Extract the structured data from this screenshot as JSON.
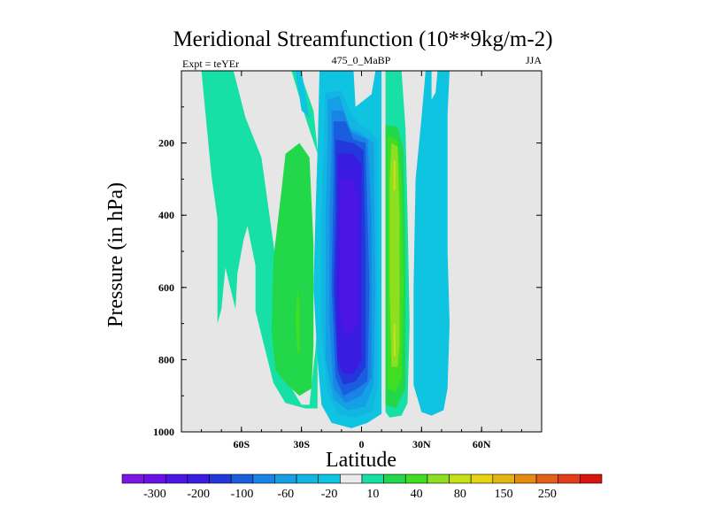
{
  "chart_data": {
    "type": "contour",
    "title": "Meridional Streamfunction (10**9kg/m-2)",
    "subtitle_left": "Expt = teYEr",
    "subtitle_center": "475_0_MaBP",
    "subtitle_right": "JJA",
    "xlabel": "Latitude",
    "ylabel": "Pressure (in hPa)",
    "xlim": [
      -90,
      90
    ],
    "ylim": [
      0,
      1000
    ],
    "y_reversed": true,
    "x_ticks": [
      {
        "value": -60,
        "label": "60S"
      },
      {
        "value": -30,
        "label": "30S"
      },
      {
        "value": 0,
        "label": "0"
      },
      {
        "value": 30,
        "label": "30N"
      },
      {
        "value": 60,
        "label": "60N"
      }
    ],
    "y_ticks": [
      {
        "value": 200,
        "label": "200"
      },
      {
        "value": 400,
        "label": "400"
      },
      {
        "value": 600,
        "label": "600"
      },
      {
        "value": 800,
        "label": "800"
      },
      {
        "value": 1000,
        "label": "1000"
      }
    ],
    "background_color": "#e6e6e6",
    "colorbar": {
      "colors": [
        "#7a16e0",
        "#6a10e8",
        "#4d14e6",
        "#3a1ce0",
        "#2238dc",
        "#1a5ee0",
        "#1a84e6",
        "#15a0e6",
        "#12b6e2",
        "#0ec4e0",
        "#ebebeb",
        "#16e0a6",
        "#22d84a",
        "#40de22",
        "#8ede22",
        "#c8e018",
        "#e4d414",
        "#e4b412",
        "#e68a10",
        "#e4601a",
        "#e23c18",
        "#d8160e"
      ],
      "labels": [
        "-300",
        "-200",
        "-100",
        "-60",
        "-20",
        "10",
        "40",
        "80",
        "150",
        "250"
      ],
      "label_boundary_index": [
        1,
        3,
        5,
        7,
        9,
        11,
        13,
        15,
        17,
        19
      ]
    },
    "regions": [
      {
        "name": "southern-outer-cell",
        "color": "#16e0a6",
        "polygon": [
          [
            -80,
            0
          ],
          [
            -64,
            0
          ],
          [
            -58,
            130
          ],
          [
            -50,
            240
          ],
          [
            -40,
            640
          ],
          [
            -36,
            870
          ],
          [
            -30,
            925
          ],
          [
            -26,
            925
          ],
          [
            -23,
            770
          ],
          [
            -21,
            610
          ],
          [
            -23,
            470
          ],
          [
            -22,
            230
          ],
          [
            -28,
            130
          ],
          [
            -35,
            0
          ],
          [
            -31,
            0
          ],
          [
            -24,
            110
          ],
          [
            -22,
            220
          ],
          [
            -23,
            400
          ],
          [
            -22,
            600
          ],
          [
            -22,
            800
          ],
          [
            -22,
            935
          ],
          [
            -28,
            935
          ],
          [
            -38,
            920
          ],
          [
            -44,
            865
          ],
          [
            -53,
            665
          ],
          [
            -53,
            540
          ],
          [
            -57,
            430
          ],
          [
            -59,
            470
          ],
          [
            -62,
            560
          ],
          [
            -63,
            660
          ],
          [
            -68,
            545
          ],
          [
            -70,
            660
          ],
          [
            -72,
            700
          ],
          [
            -72,
            410
          ],
          [
            -75,
            290
          ],
          [
            -80,
            0
          ]
        ]
      },
      {
        "name": "southern-cell-core",
        "color": "#22d84a",
        "polygon": [
          [
            -38,
            230
          ],
          [
            -31,
            200
          ],
          [
            -26,
            240
          ],
          [
            -24,
            480
          ],
          [
            -24,
            760
          ],
          [
            -25,
            880
          ],
          [
            -31,
            900
          ],
          [
            -37,
            870
          ],
          [
            -43,
            830
          ],
          [
            -45,
            720
          ],
          [
            -44,
            520
          ],
          [
            -40,
            330
          ],
          [
            -38,
            230
          ]
        ]
      },
      {
        "name": "southern-cell-peak",
        "color": "#40de22",
        "polygon": [
          [
            -32,
            600
          ],
          [
            -31,
            640
          ],
          [
            -31,
            780
          ],
          [
            -32,
            780
          ],
          [
            -33,
            690
          ],
          [
            -32,
            600
          ]
        ]
      },
      {
        "name": "tropical-cell-outer",
        "color": "#0ec4e0",
        "polygon": [
          [
            -21,
            0
          ],
          [
            -4,
            0
          ],
          [
            -3,
            100
          ],
          [
            5,
            65
          ],
          [
            7,
            0
          ],
          [
            10,
            0
          ],
          [
            10,
            950
          ],
          [
            3,
            975
          ],
          [
            -5,
            990
          ],
          [
            -15,
            975
          ],
          [
            -20,
            925
          ],
          [
            -22,
            800
          ],
          [
            -24,
            600
          ],
          [
            -23,
            400
          ],
          [
            -22,
            230
          ],
          [
            -21,
            0
          ]
        ]
      },
      {
        "name": "tropical-cell-ring1",
        "color": "#12b6e2",
        "polygon": [
          [
            -18,
            60
          ],
          [
            -10,
            55
          ],
          [
            -5,
            120
          ],
          [
            -1,
            150
          ],
          [
            3,
            160
          ],
          [
            8,
            190
          ],
          [
            8,
            600
          ],
          [
            8,
            880
          ],
          [
            5,
            945
          ],
          [
            -3,
            960
          ],
          [
            -12,
            950
          ],
          [
            -17,
            890
          ],
          [
            -20,
            720
          ],
          [
            -20,
            400
          ],
          [
            -19,
            200
          ],
          [
            -18,
            60
          ]
        ]
      },
      {
        "name": "tropical-cell-ring2",
        "color": "#15a0e6",
        "polygon": [
          [
            -17,
            80
          ],
          [
            -11,
            70
          ],
          [
            -6,
            160
          ],
          [
            -1,
            170
          ],
          [
            6,
            200
          ],
          [
            7,
            600
          ],
          [
            6,
            870
          ],
          [
            2,
            930
          ],
          [
            -7,
            940
          ],
          [
            -14,
            910
          ],
          [
            -18,
            800
          ],
          [
            -18,
            400
          ],
          [
            -17,
            200
          ],
          [
            -17,
            80
          ]
        ]
      },
      {
        "name": "tropical-cell-ring3",
        "color": "#1a84e6",
        "polygon": [
          [
            -15,
            110
          ],
          [
            -9,
            110
          ],
          [
            -5,
            170
          ],
          [
            3,
            190
          ],
          [
            5,
            400
          ],
          [
            5,
            850
          ],
          [
            0,
            900
          ],
          [
            -8,
            920
          ],
          [
            -14,
            880
          ],
          [
            -16,
            700
          ],
          [
            -16,
            400
          ],
          [
            -15,
            200
          ],
          [
            -15,
            110
          ]
        ]
      },
      {
        "name": "tropical-cell-ring4",
        "color": "#1a5ee0",
        "polygon": [
          [
            -14,
            140
          ],
          [
            -8,
            140
          ],
          [
            -4,
            190
          ],
          [
            2,
            200
          ],
          [
            4,
            600
          ],
          [
            3,
            860
          ],
          [
            -2,
            880
          ],
          [
            -9,
            900
          ],
          [
            -13,
            850
          ],
          [
            -15,
            600
          ],
          [
            -14,
            300
          ],
          [
            -14,
            140
          ]
        ]
      },
      {
        "name": "tropical-cell-ring5",
        "color": "#2238dc",
        "polygon": [
          [
            -13,
            190
          ],
          [
            -4,
            200
          ],
          [
            1,
            220
          ],
          [
            2,
            500
          ],
          [
            2,
            820
          ],
          [
            -3,
            860
          ],
          [
            -9,
            870
          ],
          [
            -12,
            830
          ],
          [
            -14,
            600
          ],
          [
            -13,
            400
          ],
          [
            -13,
            190
          ]
        ]
      },
      {
        "name": "tropical-cell-ring6",
        "color": "#3a1ce0",
        "polygon": [
          [
            -12,
            230
          ],
          [
            -4,
            230
          ],
          [
            0,
            260
          ],
          [
            0,
            800
          ],
          [
            -4,
            840
          ],
          [
            -9,
            840
          ],
          [
            -12,
            800
          ],
          [
            -13,
            600
          ],
          [
            -12,
            400
          ],
          [
            -12,
            230
          ]
        ]
      },
      {
        "name": "tropical-cell-core",
        "color": "#4d14e6",
        "polygon": [
          [
            -10,
            300
          ],
          [
            -4,
            300
          ],
          [
            -2,
            350
          ],
          [
            -2,
            700
          ],
          [
            -5,
            730
          ],
          [
            -9,
            720
          ],
          [
            -11,
            650
          ],
          [
            -11,
            400
          ],
          [
            -10,
            300
          ]
        ]
      },
      {
        "name": "northern-hadley-outer",
        "color": "#16e0a6",
        "polygon": [
          [
            12,
            0
          ],
          [
            20,
            0
          ],
          [
            22,
            160
          ],
          [
            23,
            400
          ],
          [
            24,
            700
          ],
          [
            23,
            920
          ],
          [
            20,
            955
          ],
          [
            14,
            960
          ],
          [
            12,
            945
          ],
          [
            12,
            600
          ],
          [
            12,
            0
          ]
        ]
      },
      {
        "name": "northern-hadley-ring1",
        "color": "#22d84a",
        "polygon": [
          [
            12,
            150
          ],
          [
            18,
            155
          ],
          [
            21,
            220
          ],
          [
            22,
            500
          ],
          [
            22,
            880
          ],
          [
            17,
            935
          ],
          [
            12,
            925
          ],
          [
            12,
            500
          ],
          [
            12,
            150
          ]
        ]
      },
      {
        "name": "northern-hadley-ring2",
        "color": "#40de22",
        "polygon": [
          [
            13,
            180
          ],
          [
            18,
            195
          ],
          [
            20,
            300
          ],
          [
            21,
            600
          ],
          [
            20,
            850
          ],
          [
            17,
            890
          ],
          [
            13,
            880
          ],
          [
            13,
            500
          ],
          [
            13,
            180
          ]
        ]
      },
      {
        "name": "northern-hadley-ring3",
        "color": "#8ede22",
        "polygon": [
          [
            15,
            200
          ],
          [
            18,
            210
          ],
          [
            19,
            400
          ],
          [
            19,
            760
          ],
          [
            18,
            820
          ],
          [
            15,
            820
          ],
          [
            14,
            600
          ],
          [
            14,
            300
          ],
          [
            15,
            200
          ]
        ]
      },
      {
        "name": "northern-hadley-core",
        "color": "#c8e018",
        "polygon": [
          [
            16,
            250
          ],
          [
            17,
            250
          ],
          [
            17,
            330
          ],
          [
            16,
            330
          ],
          [
            16,
            250
          ],
          [
            16,
            700
          ],
          [
            17,
            700
          ],
          [
            17,
            790
          ],
          [
            16,
            790
          ],
          [
            16,
            700
          ]
        ]
      },
      {
        "name": "northern-ferrel-cell",
        "color": "#0ec4e0",
        "polygon": [
          [
            38,
            0
          ],
          [
            44,
            0
          ],
          [
            43,
            120
          ],
          [
            43,
            500
          ],
          [
            44,
            700
          ],
          [
            43,
            880
          ],
          [
            41,
            940
          ],
          [
            35,
            955
          ],
          [
            30,
            945
          ],
          [
            26,
            870
          ],
          [
            26,
            600
          ],
          [
            27,
            300
          ],
          [
            30,
            130
          ],
          [
            32,
            0
          ],
          [
            35,
            0
          ],
          [
            35,
            80
          ],
          [
            37,
            60
          ],
          [
            38,
            0
          ]
        ]
      },
      {
        "name": "polar-cell-strip",
        "color": "#0ec4e0",
        "polygon": [
          [
            -33,
            0
          ],
          [
            -30,
            0
          ],
          [
            -26,
            130
          ],
          [
            -30,
            110
          ],
          [
            -33,
            0
          ]
        ]
      }
    ]
  }
}
